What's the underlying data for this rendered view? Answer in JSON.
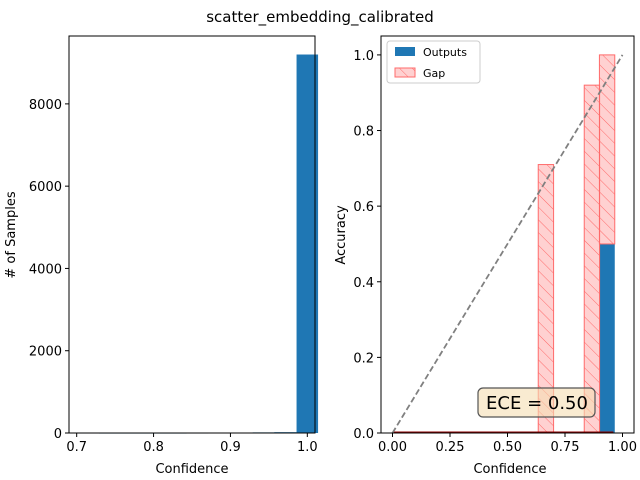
{
  "title": "scatter_embedding_calibrated",
  "chart_data": [
    {
      "type": "bar",
      "subtype": "histogram",
      "xlabel": "Confidence",
      "ylabel": "# of Samples",
      "xlim": [
        0.69,
        1.01
      ],
      "ylim": [
        0,
        9650
      ],
      "xticks": [
        0.7,
        0.8,
        0.9,
        1.0
      ],
      "xtick_labels": [
        "0.7",
        "0.8",
        "0.9",
        "1.0"
      ],
      "yticks": [
        0,
        2000,
        4000,
        6000,
        8000
      ],
      "ytick_labels": [
        "0",
        "2000",
        "4000",
        "6000",
        "8000"
      ],
      "bins": [
        {
          "x0": 0.7,
          "x1": 0.729,
          "count": 2
        },
        {
          "x0": 0.729,
          "x1": 0.757,
          "count": 1
        },
        {
          "x0": 0.757,
          "x1": 0.786,
          "count": 1
        },
        {
          "x0": 0.786,
          "x1": 0.814,
          "count": 1
        },
        {
          "x0": 0.814,
          "x1": 0.843,
          "count": 1
        },
        {
          "x0": 0.843,
          "x1": 0.871,
          "count": 2
        },
        {
          "x0": 0.871,
          "x1": 0.9,
          "count": 3
        },
        {
          "x0": 0.9,
          "x1": 0.929,
          "count": 5
        },
        {
          "x0": 0.929,
          "x1": 0.957,
          "count": 15
        },
        {
          "x0": 0.957,
          "x1": 0.986,
          "count": 20
        },
        {
          "x0": 0.986,
          "x1": 1.014,
          "count": 9200
        }
      ],
      "color": "#1f77b4",
      "grid": false
    },
    {
      "type": "bar",
      "subtype": "reliability_diagram",
      "xlabel": "Confidence",
      "ylabel": "Accuracy",
      "xlim": [
        -0.05,
        1.05
      ],
      "ylim": [
        0,
        1.05
      ],
      "xticks": [
        0.0,
        0.25,
        0.5,
        0.75,
        1.0
      ],
      "xtick_labels": [
        "0.00",
        "0.25",
        "0.50",
        "0.75",
        "1.00"
      ],
      "yticks": [
        0.0,
        0.2,
        0.4,
        0.6,
        0.8,
        1.0
      ],
      "ytick_labels": [
        "0.0",
        "0.2",
        "0.4",
        "0.6",
        "0.8",
        "1.0"
      ],
      "bin_width": 0.0667,
      "series": [
        {
          "name": "Outputs",
          "color": "#1f77b4",
          "bars": [
            {
              "center": 0.667,
              "value": 0.0
            },
            {
              "center": 0.867,
              "value": 0.0
            },
            {
              "center": 0.933,
              "value": 0.5
            }
          ]
        },
        {
          "name": "Gap",
          "color": "#ff0000",
          "fill": "rgba(255,0,0,0.18)",
          "bars": [
            {
              "center": 0.667,
              "bottom": 0.0,
              "top": 0.71
            },
            {
              "center": 0.867,
              "bottom": 0.0,
              "top": 0.92
            },
            {
              "center": 0.933,
              "bottom": 0.5,
              "top": 1.0
            }
          ]
        }
      ],
      "diagonal": {
        "x": [
          0,
          1
        ],
        "y": [
          0,
          1
        ],
        "color": "#808080",
        "style": "dashed"
      },
      "baseline": {
        "x": [
          0,
          0.96
        ],
        "y": [
          0,
          0
        ],
        "color": "#8b0000"
      },
      "annotation": {
        "text": "ECE = 0.50",
        "x": 0.43,
        "y": 0.08
      },
      "legend": "top-left",
      "grid": false
    }
  ]
}
